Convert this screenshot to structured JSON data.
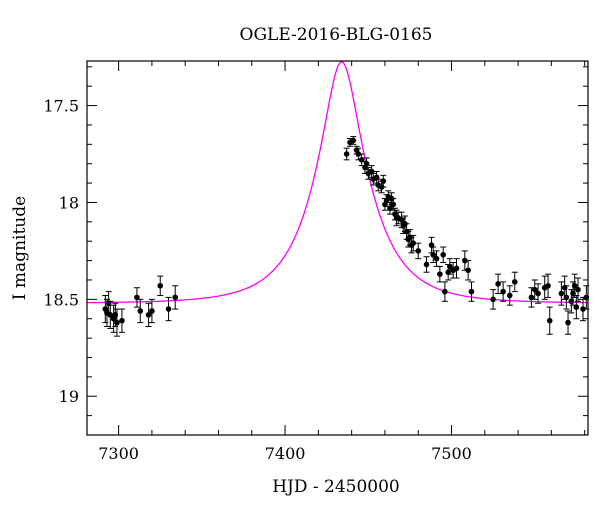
{
  "chart_data": {
    "type": "scatter",
    "title": "OGLE-2016-BLG-0165",
    "xlabel": "HJD - 2450000",
    "ylabel": "I magnitude",
    "xlim": [
      7281,
      7582
    ],
    "ylim": [
      19.2,
      17.27
    ],
    "y_inverted": true,
    "x_ticks": [
      7300,
      7400,
      7500
    ],
    "y_ticks": [
      17.5,
      18,
      18.5,
      19
    ],
    "y_tick_labels": [
      "17.5",
      "18",
      "18.5",
      "19"
    ],
    "colors": {
      "model": "#ff00ff",
      "points": "#000000",
      "axes": "#000000"
    },
    "series": [
      {
        "type": "scatter",
        "points": [
          [
            7292,
            18.55,
            0.07
          ],
          [
            7293,
            18.57,
            0.07
          ],
          [
            7294,
            18.52,
            0.06
          ],
          [
            7295,
            18.58,
            0.07
          ],
          [
            7297,
            18.6,
            0.07
          ],
          [
            7298,
            18.58,
            0.06
          ],
          [
            7299,
            18.62,
            0.07
          ],
          [
            7302,
            18.61,
            0.06
          ],
          [
            7311,
            18.49,
            0.05
          ],
          [
            7313,
            18.56,
            0.06
          ],
          [
            7318,
            18.58,
            0.06
          ],
          [
            7320,
            18.56,
            0.06
          ],
          [
            7325,
            18.43,
            0.05
          ],
          [
            7330,
            18.55,
            0.06
          ],
          [
            7334,
            18.49,
            0.06
          ],
          [
            7437,
            17.75,
            0.03
          ],
          [
            7439,
            17.69,
            0.02
          ],
          [
            7441,
            17.68,
            0.02
          ],
          [
            7443,
            17.73,
            0.02
          ],
          [
            7444,
            17.75,
            0.03
          ],
          [
            7446,
            17.78,
            0.03
          ],
          [
            7448,
            17.82,
            0.03
          ],
          [
            7449,
            17.8,
            0.03
          ],
          [
            7450,
            17.85,
            0.03
          ],
          [
            7452,
            17.84,
            0.03
          ],
          [
            7453,
            17.88,
            0.03
          ],
          [
            7455,
            17.87,
            0.03
          ],
          [
            7456,
            17.91,
            0.03
          ],
          [
            7458,
            17.92,
            0.03
          ],
          [
            7459,
            17.89,
            0.03
          ],
          [
            7460,
            18.01,
            0.03
          ],
          [
            7461,
            17.99,
            0.03
          ],
          [
            7462,
            17.97,
            0.03
          ],
          [
            7463,
            18.03,
            0.03
          ],
          [
            7464,
            17.98,
            0.03
          ],
          [
            7465,
            18.01,
            0.03
          ],
          [
            7466,
            18.06,
            0.03
          ],
          [
            7467,
            18.08,
            0.04
          ],
          [
            7468,
            18.08,
            0.03
          ],
          [
            7470,
            18.09,
            0.04
          ],
          [
            7471,
            18.12,
            0.04
          ],
          [
            7472,
            18.11,
            0.04
          ],
          [
            7473,
            18.15,
            0.04
          ],
          [
            7474,
            18.19,
            0.04
          ],
          [
            7475,
            18.18,
            0.04
          ],
          [
            7476,
            18.22,
            0.04
          ],
          [
            7477,
            18.21,
            0.04
          ],
          [
            7480,
            18.25,
            0.04
          ],
          [
            7485,
            18.32,
            0.04
          ],
          [
            7488,
            18.22,
            0.04
          ],
          [
            7489,
            18.27,
            0.04
          ],
          [
            7491,
            18.29,
            0.04
          ],
          [
            7493,
            18.37,
            0.04
          ],
          [
            7495,
            18.27,
            0.04
          ],
          [
            7496,
            18.46,
            0.05
          ],
          [
            7498,
            18.36,
            0.04
          ],
          [
            7499,
            18.33,
            0.04
          ],
          [
            7501,
            18.35,
            0.04
          ],
          [
            7503,
            18.34,
            0.05
          ],
          [
            7508,
            18.3,
            0.05
          ],
          [
            7510,
            18.35,
            0.05
          ],
          [
            7512,
            18.46,
            0.05
          ],
          [
            7525,
            18.5,
            0.05
          ],
          [
            7528,
            18.42,
            0.05
          ],
          [
            7531,
            18.46,
            0.05
          ],
          [
            7535,
            18.48,
            0.05
          ],
          [
            7538,
            18.41,
            0.05
          ],
          [
            7548,
            18.49,
            0.05
          ],
          [
            7550,
            18.45,
            0.05
          ],
          [
            7552,
            18.47,
            0.05
          ],
          [
            7556,
            18.44,
            0.06
          ],
          [
            7558,
            18.43,
            0.06
          ],
          [
            7559,
            18.61,
            0.07
          ],
          [
            7566,
            18.47,
            0.06
          ],
          [
            7568,
            18.44,
            0.06
          ],
          [
            7569,
            18.49,
            0.06
          ],
          [
            7570,
            18.62,
            0.06
          ],
          [
            7572,
            18.51,
            0.06
          ],
          [
            7573,
            18.47,
            0.06
          ],
          [
            7574,
            18.43,
            0.06
          ],
          [
            7575,
            18.54,
            0.06
          ],
          [
            7576,
            18.45,
            0.06
          ],
          [
            7579,
            18.55,
            0.06
          ],
          [
            7581,
            18.49,
            0.06
          ]
        ]
      },
      {
        "type": "line",
        "model": {
          "t0": 7434,
          "u0": 0.33,
          "tE": 31,
          "baseline": 18.52
        }
      }
    ]
  }
}
